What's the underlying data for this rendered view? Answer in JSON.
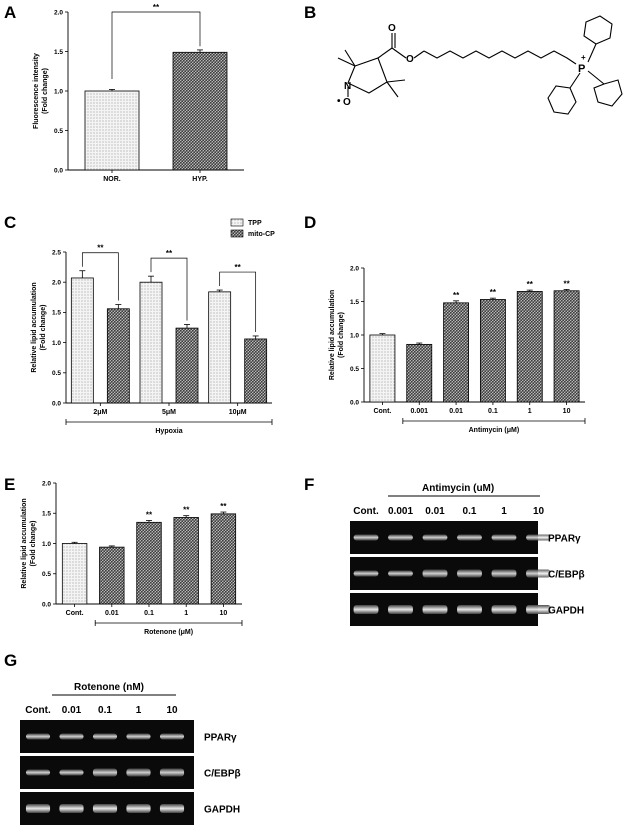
{
  "panels": {
    "A": {
      "label": "A"
    },
    "B": {
      "label": "B"
    },
    "C": {
      "label": "C"
    },
    "D": {
      "label": "D"
    },
    "E": {
      "label": "E"
    },
    "F": {
      "label": "F"
    },
    "G": {
      "label": "G"
    }
  },
  "chart_data": [
    {
      "id": "A",
      "type": "bar",
      "ylabel_lines": [
        "Fluorescence intensity",
        "(Fold change)"
      ],
      "ylim": [
        0,
        2.0
      ],
      "yticks": [
        "0.0",
        "0.5",
        "1.0",
        "1.5",
        "2.0"
      ],
      "categories": [
        "NOR.",
        "HYP."
      ],
      "values": [
        1.0,
        1.49
      ],
      "errors": [
        0.02,
        0.03
      ],
      "patterns": [
        "dots",
        "hatch"
      ],
      "significance": [
        {
          "from": 0,
          "to": 1,
          "text": "**"
        }
      ]
    },
    {
      "id": "C",
      "type": "bar",
      "ylabel_lines": [
        "Relative lipid accumulation",
        "(Fold change)"
      ],
      "ylim": [
        0,
        2.5
      ],
      "yticks": [
        "0.0",
        "0.5",
        "1.0",
        "1.5",
        "2.0",
        "2.5"
      ],
      "categories": [
        "2μM",
        "5μM",
        "10μM"
      ],
      "series": [
        {
          "name": "TPP",
          "values": [
            2.07,
            2.0,
            1.84
          ],
          "errors": [
            0.12,
            0.1,
            0.03
          ],
          "pattern": "dots"
        },
        {
          "name": "mito-CP",
          "values": [
            1.56,
            1.24,
            1.06
          ],
          "errors": [
            0.07,
            0.06,
            0.05
          ],
          "pattern": "hatch"
        }
      ],
      "group_label": "Hypoxia",
      "significance_text": "**"
    },
    {
      "id": "D",
      "type": "bar",
      "ylabel_lines": [
        "Relative lipid accumulation",
        "(Fold change)"
      ],
      "ylim": [
        0,
        2.0
      ],
      "yticks": [
        "0.0",
        "0.5",
        "1.0",
        "1.5",
        "2.0"
      ],
      "categories": [
        "Cont.",
        "0.001",
        "0.01",
        "0.1",
        "1",
        "10"
      ],
      "values": [
        1.0,
        0.86,
        1.48,
        1.53,
        1.65,
        1.66
      ],
      "errors": [
        0.02,
        0.02,
        0.03,
        0.02,
        0.02,
        0.02
      ],
      "patterns": [
        "dots",
        "hatch",
        "hatch",
        "hatch",
        "hatch",
        "hatch"
      ],
      "marks": [
        "",
        "",
        "**",
        "**",
        "**",
        "**"
      ],
      "group_label": "Antimycin (μM)"
    },
    {
      "id": "E",
      "type": "bar",
      "ylabel_lines": [
        "Relative lipid accumulation",
        "(Fold change)"
      ],
      "ylim": [
        0,
        2.0
      ],
      "yticks": [
        "0.0",
        "0.5",
        "1.0",
        "1.5",
        "2.0"
      ],
      "categories": [
        "Cont.",
        "0.01",
        "0.1",
        "1",
        "10"
      ],
      "values": [
        1.0,
        0.94,
        1.35,
        1.43,
        1.49
      ],
      "errors": [
        0.02,
        0.02,
        0.03,
        0.03,
        0.03
      ],
      "patterns": [
        "dots",
        "hatch",
        "hatch",
        "hatch",
        "hatch"
      ],
      "marks": [
        "",
        "",
        "**",
        "**",
        "**"
      ],
      "group_label": "Rotenone (μM)"
    }
  ],
  "gels": {
    "F": {
      "title": "Antimycin (uM)",
      "lanes": [
        "Cont.",
        "0.001",
        "0.01",
        "0.1",
        "1",
        "10"
      ],
      "bands": [
        "PPARγ",
        "C/EBPβ",
        "GAPDH"
      ]
    },
    "G": {
      "title": "Rotenone (nM)",
      "lanes": [
        "Cont.",
        "0.01",
        "0.1",
        "1",
        "10"
      ],
      "bands": [
        "PPARγ",
        "C/EBPβ",
        "GAPDH"
      ]
    }
  },
  "structure_b": {
    "atoms": [
      "N",
      "O",
      "O",
      "O",
      "P"
    ],
    "charges": [
      "+",
      "•"
    ]
  }
}
